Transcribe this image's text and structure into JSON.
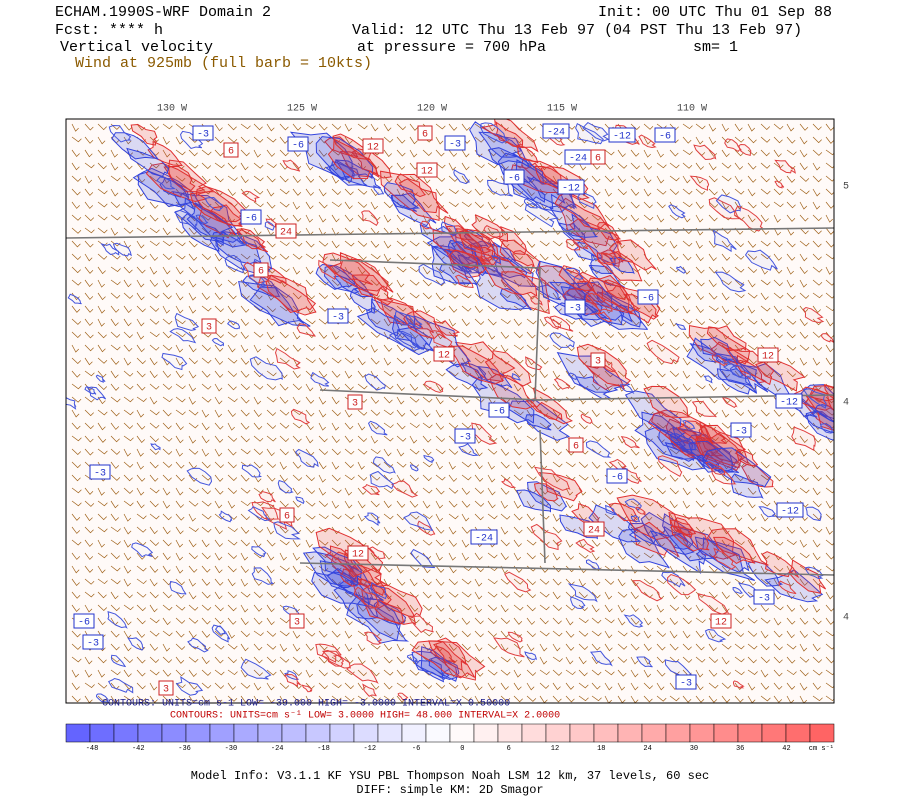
{
  "header": {
    "title": "ECHAM.1990S-WRF Domain 2",
    "init": "Init: 00 UTC Thu 01 Sep 88",
    "forecast": "Fcst: **** h",
    "valid": "Valid: 12 UTC Thu 13 Feb 97 (04 PST Thu 13 Feb 97)",
    "field": "Vertical velocity",
    "pressure": "at pressure =  700 hPa",
    "smoothing": "sm= 1",
    "wind": "Wind at 925mb (full barb = 10kts)"
  },
  "map": {
    "longitude_labels": [
      "130 W",
      "125 W",
      "120 W",
      "115 W",
      "110 W"
    ],
    "latitude_labels": [
      "5",
      "4",
      "4"
    ],
    "contour_labels": [
      "-3",
      "6",
      "-6",
      "12",
      "-3",
      "6",
      "-24",
      "-12",
      "-6",
      "-24",
      "6",
      "-12",
      "12",
      "-6",
      "24",
      "-6",
      "6",
      "3",
      "-3",
      "12",
      "-3",
      "-6",
      "12",
      "3",
      "-6",
      "-3",
      "-12",
      "-3",
      "-12",
      "-6",
      "24",
      "-24",
      "12",
      "3",
      "-6",
      "-3",
      "-3",
      "3",
      "12",
      "-3",
      "6",
      "3",
      "6",
      "-3"
    ]
  },
  "contours": {
    "negative": "CONTOURS:  UNITS=cm s-1  LOW= -39.000   HIGH= -3.0000   INTERVAL=X 0.50000",
    "positive": "CONTOURS:  UNITS=cm s⁻¹  LOW=  3.0000   HIGH=  48.000   INTERVAL=X  2.0000"
  },
  "colorbar": {
    "labels": [
      "-48",
      "-42",
      "-36",
      "-30",
      "-24",
      "-18",
      "-12",
      "-6",
      "0",
      "6",
      "12",
      "18",
      "24",
      "30",
      "36",
      "42"
    ],
    "unit": "cm s⁻¹"
  },
  "footer": {
    "model_info": "Model Info: V3.1.1    KF      YSU PBL   Thompson     Noah LSM  12 km,    37 levels,    60 sec",
    "diff": "DIFF: simple KM: 2D Smagor"
  }
}
